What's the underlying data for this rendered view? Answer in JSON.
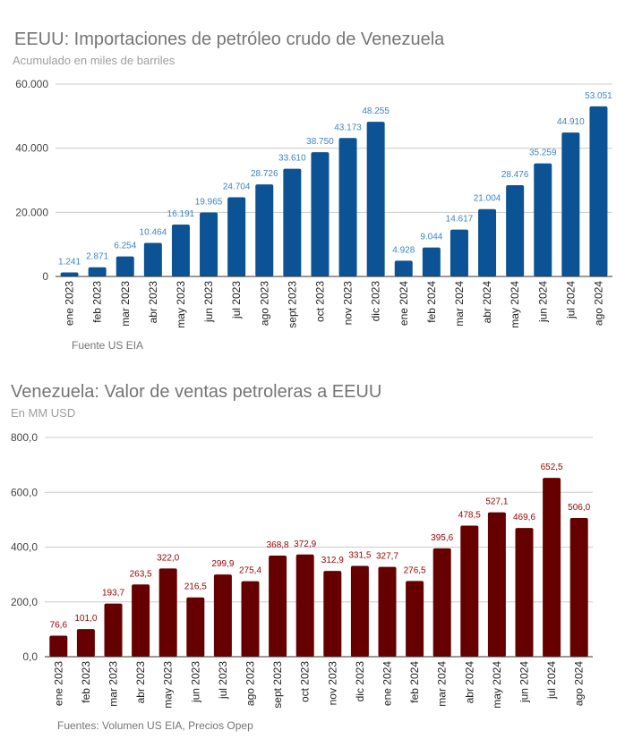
{
  "charts": [
    {
      "title": "EEUU: Importaciones de petróleo crudo de Venezuela",
      "subtitle": "Acumulado en miles de barriles",
      "source": "Fuente US EIA"
    },
    {
      "title": "Venezuela: Valor de ventas petroleras a EEUU",
      "subtitle": "En MM USD",
      "source": "Fuentes: Volumen US EIA, Precios Opep"
    }
  ],
  "chart_data": [
    {
      "type": "bar",
      "title": "EEUU: Importaciones de petróleo crudo de Venezuela",
      "subtitle": "Acumulado en miles de barriles",
      "xlabel": "",
      "ylabel": "",
      "ylim": [
        0,
        60000
      ],
      "yticks": [
        0,
        20000,
        40000,
        60000
      ],
      "ytick_labels": [
        "0",
        "20.000",
        "40.000",
        "60.000"
      ],
      "grid": true,
      "bar_color": "#0b5394",
      "label_color": "#3d85c6",
      "categories": [
        "ene 2023",
        "feb 2023",
        "mar 2023",
        "abr 2023",
        "may 2023",
        "jun 2023",
        "jul 2023",
        "ago 2023",
        "sept 2023",
        "oct 2023",
        "nov 2023",
        "dic 2023",
        "ene 2024",
        "feb 2024",
        "mar 2024",
        "abr 2024",
        "may 2024",
        "jun 2024",
        "jul 2024",
        "ago 2024"
      ],
      "values": [
        1241,
        2871,
        6254,
        10464,
        16191,
        19965,
        24704,
        28726,
        33610,
        38750,
        43173,
        48255,
        4928,
        9044,
        14617,
        21004,
        28476,
        35259,
        44910,
        53051
      ],
      "data_labels": [
        "1.241",
        "2.871",
        "6.254",
        "10.464",
        "16.191",
        "19.965",
        "24.704",
        "28.726",
        "33.610",
        "38.750",
        "43.173",
        "48.255",
        "4.928",
        "9.044",
        "14.617",
        "21.004",
        "28.476",
        "35.259",
        "44.910",
        "53.051"
      ],
      "source": "Fuente US EIA"
    },
    {
      "type": "bar",
      "title": "Venezuela: Valor de ventas petroleras a EEUU",
      "subtitle": "En MM USD",
      "xlabel": "",
      "ylabel": "",
      "ylim": [
        0,
        800
      ],
      "yticks": [
        0,
        200,
        400,
        600,
        800
      ],
      "ytick_labels": [
        "0,0",
        "200,0",
        "400,0",
        "600,0",
        "800,0"
      ],
      "grid": true,
      "bar_color": "#660000",
      "label_color": "#990000",
      "categories": [
        "ene 2023",
        "feb 2023",
        "mar 2023",
        "abr 2023",
        "may 2023",
        "jun 2023",
        "jul 2023",
        "ago 2023",
        "sept 2023",
        "oct 2023",
        "nov 2023",
        "dic 2023",
        "ene 2024",
        "feb 2024",
        "mar 2024",
        "abr 2024",
        "may 2024",
        "jun 2024",
        "jul 2024",
        "ago 2024"
      ],
      "values": [
        76.6,
        101.0,
        193.7,
        263.5,
        322.0,
        216.5,
        299.9,
        275.4,
        368.8,
        372.9,
        312.9,
        331.5,
        327.7,
        276.5,
        395.6,
        478.5,
        527.1,
        469.6,
        652.5,
        506.0
      ],
      "data_labels": [
        "76,6",
        "101,0",
        "193,7",
        "263,5",
        "322,0",
        "216,5",
        "299,9",
        "275,4",
        "368,8",
        "372,9",
        "312,9",
        "331,5",
        "327,7",
        "276,5",
        "395,6",
        "478,5",
        "527,1",
        "469,6",
        "652,5",
        "506,0"
      ],
      "source": "Fuentes: Volumen US EIA, Precios Opep"
    }
  ]
}
